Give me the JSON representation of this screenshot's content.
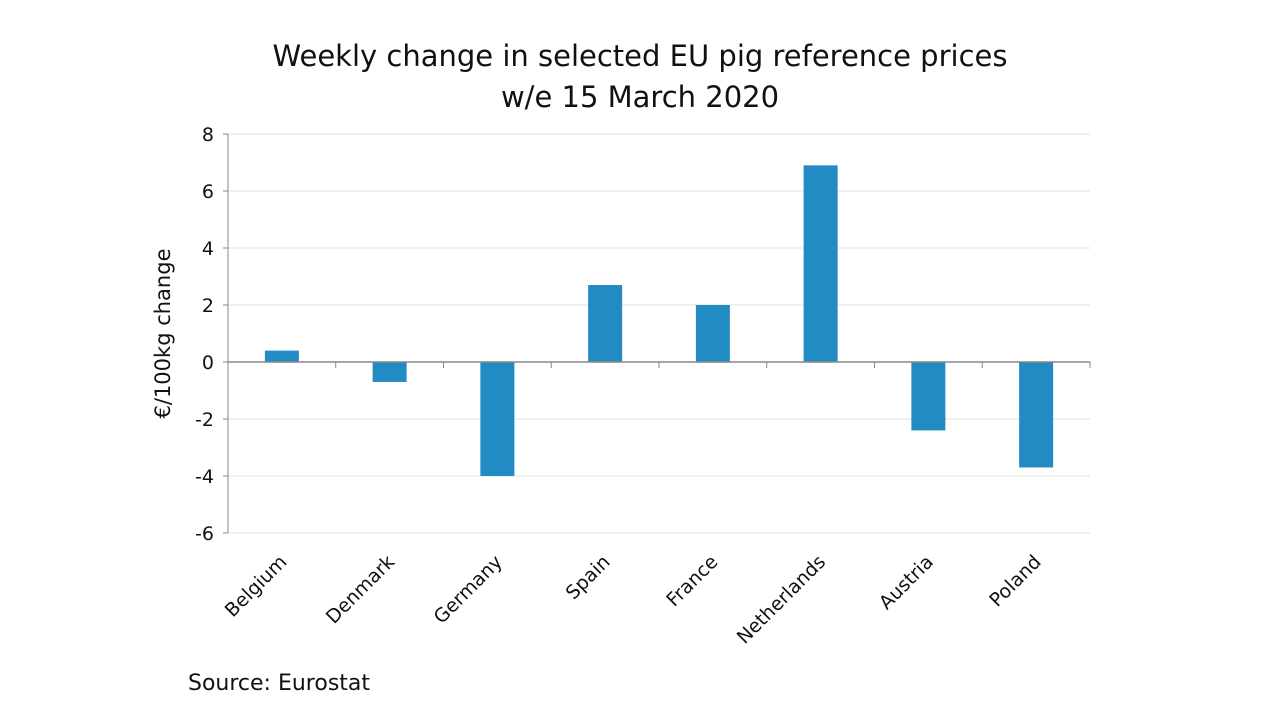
{
  "chart_data": {
    "type": "bar",
    "title": "Weekly change in selected EU pig reference prices",
    "subtitle": "w/e 15 March 2020",
    "xlabel": "",
    "ylabel": "€/100kg change",
    "ylim": [
      -6,
      8
    ],
    "yticks": [
      -6,
      -4,
      -2,
      0,
      2,
      4,
      6,
      8
    ],
    "grid": true,
    "categories": [
      "Belgium",
      "Denmark",
      "Germany",
      "Spain",
      "France",
      "Netherlands",
      "Austria",
      "Poland"
    ],
    "values": [
      0.4,
      -0.7,
      -4.0,
      2.7,
      2.0,
      6.9,
      -2.4,
      -3.7
    ],
    "bar_color": "#228BC4"
  },
  "footer": {
    "source": "Source: Eurostat"
  }
}
